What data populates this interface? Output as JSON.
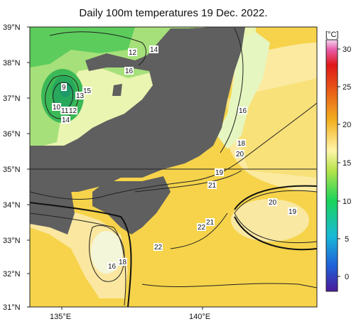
{
  "title": "Daily 100m temperatures 19 Dec. 2022.",
  "lat_labels": [
    "39°N",
    "38°N",
    "37°N",
    "36°N",
    "35°N",
    "34°N",
    "33°N",
    "32°N",
    "31°N"
  ],
  "lon_labels": [
    "135°E",
    "140°E"
  ],
  "colorbar": {
    "unit_label": "[°C]",
    "ticks": [
      "30",
      "25",
      "20",
      "15",
      "10",
      "5",
      "0"
    ],
    "range": [
      -2,
      31
    ],
    "colors": [
      "#4a1a9a",
      "#1f5fd8",
      "#18b9d6",
      "#19d45b",
      "#b5e34a",
      "#fff5a8",
      "#f2b020",
      "#e85a18",
      "#e01818",
      "#e85aa8",
      "#f3d5f0"
    ]
  },
  "contour_labels": [
    {
      "text": "12",
      "id": "c12a"
    },
    {
      "text": "14",
      "id": "c14a"
    },
    {
      "text": "16",
      "id": "c16a"
    },
    {
      "text": "9",
      "id": "c9"
    },
    {
      "text": "15",
      "id": "c15a"
    },
    {
      "text": "13",
      "id": "c13"
    },
    {
      "text": "10",
      "id": "c10"
    },
    {
      "text": "11",
      "id": "c11"
    },
    {
      "text": "12",
      "id": "c12b"
    },
    {
      "text": "14",
      "id": "c14b"
    },
    {
      "text": "16",
      "id": "c16b"
    },
    {
      "text": "18",
      "id": "c18a"
    },
    {
      "text": "20",
      "id": "c20a"
    },
    {
      "text": "19",
      "id": "c19a"
    },
    {
      "text": "21",
      "id": "c21a"
    },
    {
      "text": "20",
      "id": "c20b"
    },
    {
      "text": "19",
      "id": "c19b"
    },
    {
      "text": "22",
      "id": "c22a"
    },
    {
      "text": "21",
      "id": "c21b"
    },
    {
      "text": "22",
      "id": "c22b"
    },
    {
      "text": "16",
      "id": "c16c"
    },
    {
      "text": "18",
      "id": "c18b"
    }
  ]
}
